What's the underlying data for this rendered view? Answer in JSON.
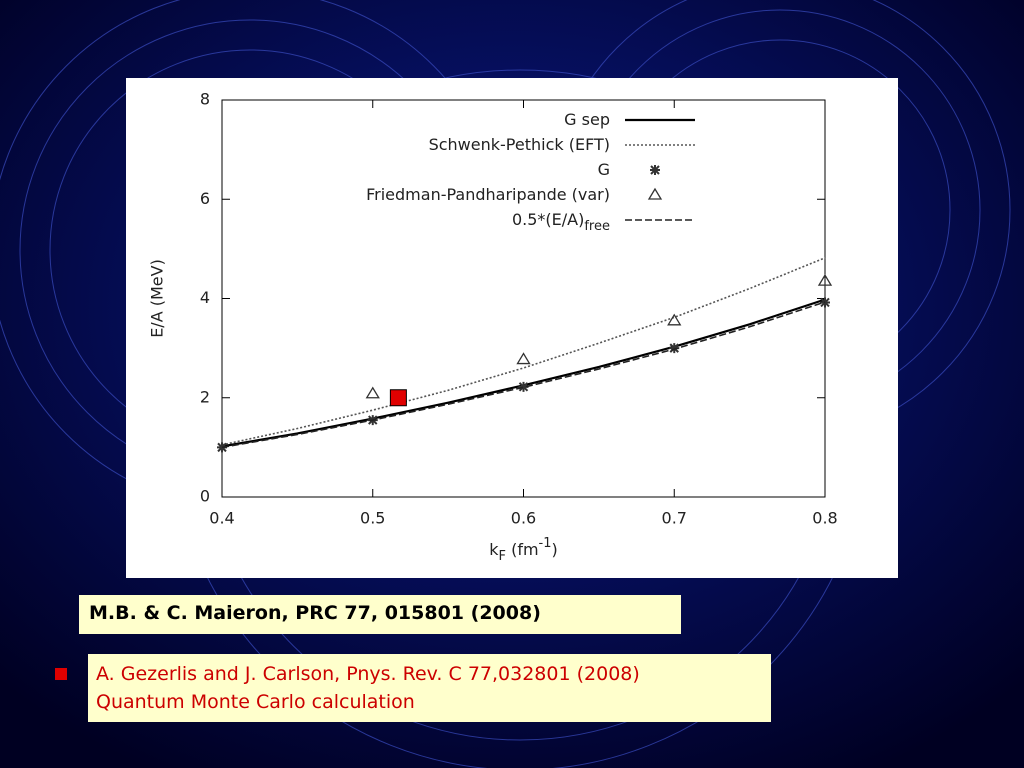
{
  "chart_data": {
    "type": "line",
    "y_label": "E/A (MeV)",
    "x_label": {
      "base": "k",
      "sub": "F",
      "mid": " (fm",
      "sup": "-1",
      "end": ")"
    },
    "xlim": [
      0.4,
      0.8
    ],
    "xticks": [
      0.4,
      0.5,
      0.6,
      0.7,
      0.8
    ],
    "ylim": [
      0,
      8
    ],
    "yticks": [
      0,
      2,
      4,
      6,
      8
    ],
    "grid": false,
    "legend": "top-right",
    "series": [
      {
        "name": "G sep",
        "color": "#000000",
        "style": "solid",
        "marker": "none",
        "x": [
          0.4,
          0.45,
          0.5,
          0.55,
          0.6,
          0.65,
          0.7,
          0.75,
          0.8
        ],
        "values": [
          1.02,
          1.28,
          1.58,
          1.9,
          2.25,
          2.62,
          3.03,
          3.48,
          3.98
        ]
      },
      {
        "name": "Schwenk-Pethick (EFT)",
        "color": "#555555",
        "style": "dotted",
        "marker": "none",
        "x": [
          0.4,
          0.45,
          0.5,
          0.55,
          0.6,
          0.65,
          0.7,
          0.75,
          0.8
        ],
        "values": [
          1.05,
          1.38,
          1.75,
          2.15,
          2.6,
          3.1,
          3.62,
          4.2,
          4.82
        ]
      },
      {
        "name": "G",
        "color": "#333333",
        "style": "none",
        "marker": "star",
        "x": [
          0.4,
          0.5,
          0.6,
          0.7,
          0.8
        ],
        "values": [
          1.0,
          1.55,
          2.22,
          3.0,
          3.92
        ]
      },
      {
        "name": "Friedman-Pandharipande (var)",
        "color": "#333333",
        "style": "none",
        "marker": "triangle",
        "x": [
          0.5,
          0.6,
          0.7,
          0.8
        ],
        "values": [
          2.08,
          2.77,
          3.55,
          4.35
        ]
      },
      {
        "name": "0.5*(E/A)",
        "name_subscript": "free",
        "color": "#222222",
        "style": "dashed",
        "marker": "none",
        "x": [
          0.4,
          0.45,
          0.5,
          0.55,
          0.6,
          0.65,
          0.7,
          0.75,
          0.8
        ],
        "values": [
          1.0,
          1.26,
          1.55,
          1.87,
          2.21,
          2.58,
          2.98,
          3.43,
          3.93
        ]
      }
    ],
    "qmc_point": {
      "x": 0.517,
      "y": 2.0,
      "color": "#e00000"
    }
  },
  "captions": {
    "reference": "M.B.  &  C. Maieron,  PRC 77, 015801 (2008)",
    "qmc_reference": [
      "A.  Gezerlis and J. Carlson, Pnys. Rev. C 77,032801 (2008)",
      "Quantum Monte Carlo calculation"
    ]
  }
}
